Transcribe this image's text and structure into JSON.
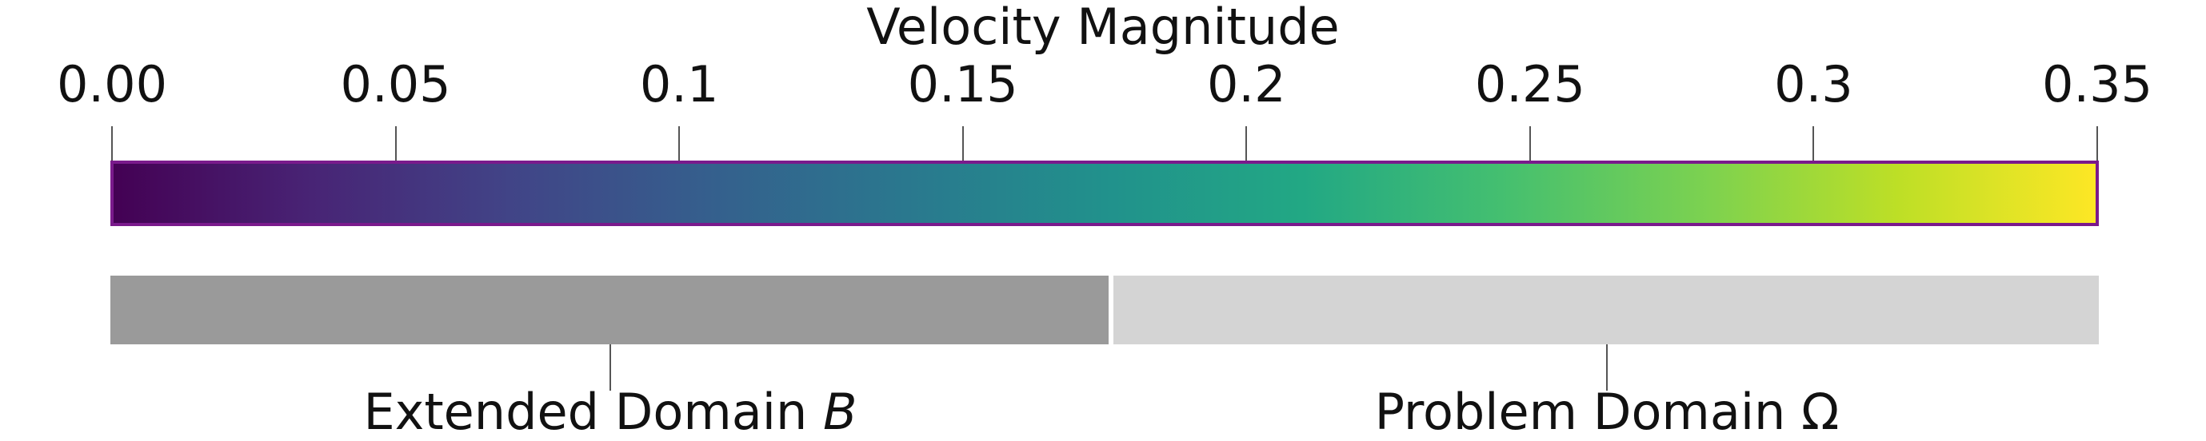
{
  "title": "Velocity Magnitude",
  "scale": {
    "min": 0.0,
    "max": 0.35,
    "tick_values": [
      0.0,
      0.05,
      0.1,
      0.15,
      0.2,
      0.25,
      0.3,
      0.35
    ],
    "tick_labels": [
      "0.00",
      "0.05",
      "0.1",
      "0.15",
      "0.2",
      "0.25",
      "0.3",
      "0.35"
    ],
    "colormap": "viridis",
    "gradient_colors": [
      "#440154",
      "#482475",
      "#414487",
      "#355f8d",
      "#2a788e",
      "#21918c",
      "#22a884",
      "#44bf70",
      "#7ad151",
      "#bddf26",
      "#fde725"
    ],
    "border_color": "#7a1a8c"
  },
  "domains": [
    {
      "label": "Extended Domain ",
      "symbol": "B",
      "color": "#9a9a9a"
    },
    {
      "label": "Problem Domain Ω",
      "symbol": "",
      "color": "#d4d4d4"
    }
  ]
}
